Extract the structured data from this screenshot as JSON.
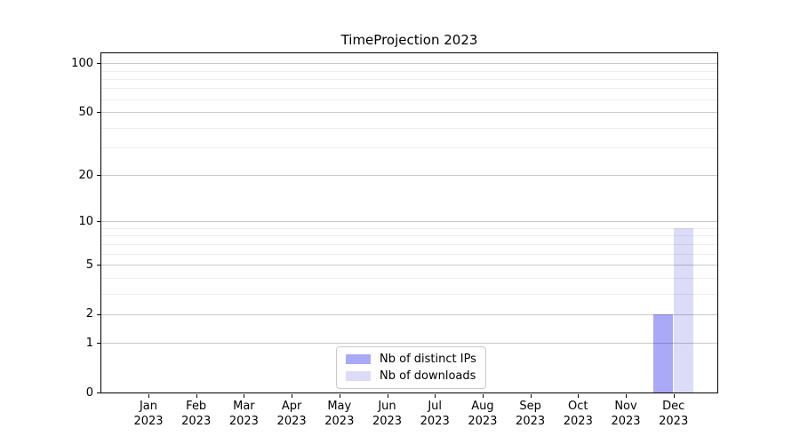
{
  "chart_data": {
    "type": "bar",
    "title": "TimeProjection 2023",
    "categories": [
      "Jan",
      "Feb",
      "Mar",
      "Apr",
      "May",
      "Jun",
      "Jul",
      "Aug",
      "Sep",
      "Oct",
      "Nov",
      "Dec"
    ],
    "category_year": "2023",
    "series": [
      {
        "name": "Nb of distinct IPs",
        "color": "#a9a9f7",
        "values": [
          0,
          0,
          0,
          0,
          0,
          0,
          0,
          0,
          0,
          0,
          0,
          2
        ]
      },
      {
        "name": "Nb of downloads",
        "color": "#dcdcf9",
        "values": [
          0,
          0,
          0,
          0,
          0,
          0,
          0,
          0,
          0,
          0,
          0,
          9
        ]
      }
    ],
    "yscale": "log1p",
    "ylim": [
      0,
      115
    ],
    "y_major_ticks": [
      0,
      1,
      2,
      5,
      10,
      20,
      50,
      100
    ],
    "y_minor_ticks": [
      3,
      4,
      6,
      7,
      8,
      9,
      30,
      40,
      60,
      70,
      80,
      90
    ],
    "xlabel": "",
    "ylabel": "",
    "grid": true,
    "legend": {
      "position": "lower center inside",
      "entries": [
        "Nb of distinct IPs",
        "Nb of downloads"
      ]
    }
  },
  "colors": {
    "grid_major": "#cccccc",
    "grid_minor": "#ededed",
    "spine": "#000000",
    "background": "#ffffff"
  }
}
